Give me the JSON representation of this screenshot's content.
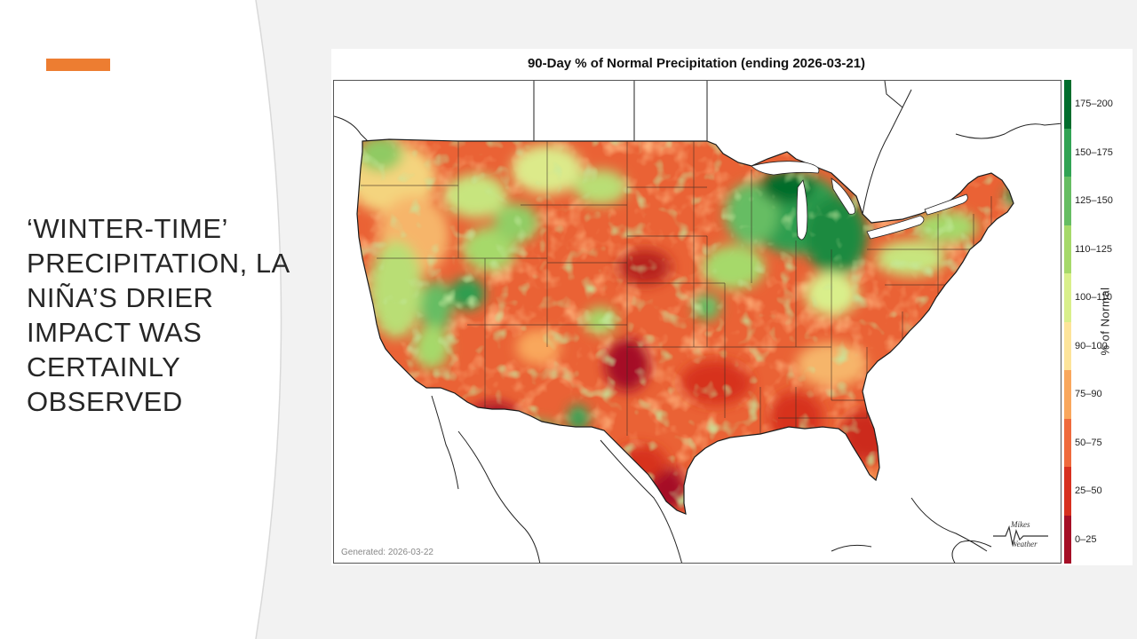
{
  "slide": {
    "title_lines": [
      "‘WINTER-TIME’",
      "PRECIPITATION, LA",
      "NIÑA’S DRIER",
      "IMPACT WAS",
      "CERTAINLY",
      "OBSERVED"
    ],
    "accent_color": "#ed7d31"
  },
  "map": {
    "title": "90-Day % of Normal Precipitation (ending 2026-03-21)",
    "generated": "Generated: 2026-03-22",
    "logo_lines": [
      "Mikes",
      "Weather"
    ],
    "legend": {
      "label": "% of Normal",
      "bins": [
        {
          "range": "0-25",
          "color": "#a50f26"
        },
        {
          "range": "25-50",
          "color": "#d7301f"
        },
        {
          "range": "50-75",
          "color": "#ef6a3c"
        },
        {
          "range": "75-90",
          "color": "#f9a75c"
        },
        {
          "range": "90-100",
          "color": "#fde49a"
        },
        {
          "range": "100-110",
          "color": "#d9ef8b"
        },
        {
          "range": "110-125",
          "color": "#a6d96a"
        },
        {
          "range": "125-150",
          "color": "#66bd63"
        },
        {
          "range": "150-175",
          "color": "#31a354"
        },
        {
          "range": "175-200",
          "color": "#006d2c"
        }
      ]
    },
    "regions": [
      {
        "name": "Great Lakes / Upper Midwest",
        "category": "150-175"
      },
      {
        "name": "Michigan",
        "category": "175-200"
      },
      {
        "name": "Southern Texas",
        "category": "0-25"
      },
      {
        "name": "Southeast",
        "category": "25-50"
      },
      {
        "name": "Pacific Northwest",
        "category": "90-100"
      },
      {
        "name": "Great Basin",
        "category": "110-125"
      },
      {
        "name": "Southern Plains",
        "category": "0-25"
      },
      {
        "name": "Florida",
        "category": "50-75"
      }
    ]
  }
}
